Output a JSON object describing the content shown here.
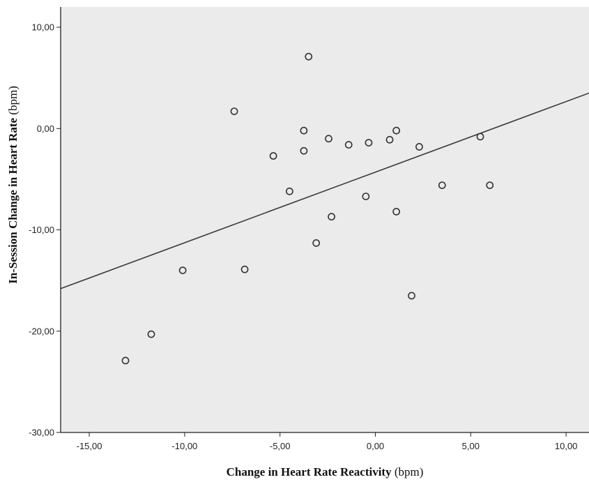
{
  "chart_data": {
    "type": "scatter",
    "title": "",
    "xlabel": {
      "bold": "Change in Heart Rate Reactivity",
      "normal": " (bpm)"
    },
    "ylabel": {
      "bold": "In-Session Change in Heart Rate",
      "normal": " (bpm)"
    },
    "xlim": [
      -16.5,
      11.2
    ],
    "ylim": [
      -30,
      12
    ],
    "x_ticks": [
      -15,
      -10,
      -5,
      0,
      5,
      10
    ],
    "x_tick_labels": [
      "-15,00",
      "-10,00",
      "-5,00",
      "0,00",
      "5,00",
      "10,00"
    ],
    "y_ticks": [
      10,
      0,
      -10,
      -20,
      -30
    ],
    "y_tick_labels": [
      "10,00",
      "0,00",
      "-10,00",
      "-20,00",
      "-30,00"
    ],
    "points": [
      {
        "x": -13.1,
        "y": -22.9
      },
      {
        "x": -11.75,
        "y": -20.3
      },
      {
        "x": -10.1,
        "y": -14.0
      },
      {
        "x": -7.4,
        "y": 1.7
      },
      {
        "x": -6.85,
        "y": -13.9
      },
      {
        "x": -5.35,
        "y": -2.7
      },
      {
        "x": -4.5,
        "y": -6.2
      },
      {
        "x": -3.75,
        "y": -0.2
      },
      {
        "x": -3.75,
        "y": -2.2
      },
      {
        "x": -3.5,
        "y": 7.1
      },
      {
        "x": -3.1,
        "y": -11.3
      },
      {
        "x": -2.45,
        "y": -1.0
      },
      {
        "x": -2.3,
        "y": -8.7
      },
      {
        "x": -1.4,
        "y": -1.6
      },
      {
        "x": -0.5,
        "y": -6.7
      },
      {
        "x": -0.35,
        "y": -1.4
      },
      {
        "x": 0.75,
        "y": -1.1
      },
      {
        "x": 1.1,
        "y": -0.2
      },
      {
        "x": 1.1,
        "y": -8.2
      },
      {
        "x": 1.9,
        "y": -16.5
      },
      {
        "x": 2.3,
        "y": -1.8
      },
      {
        "x": 3.5,
        "y": -5.6
      },
      {
        "x": 5.5,
        "y": -0.8
      },
      {
        "x": 6.0,
        "y": -5.6
      }
    ],
    "fit_line": {
      "x": [
        -16.5,
        11.2
      ],
      "y": [
        -15.8,
        3.5
      ]
    },
    "grid": false,
    "legend": "none",
    "colors": {
      "plot_background": "#ebebeb",
      "marker": "#333333",
      "line": "#3a3a3a"
    }
  }
}
